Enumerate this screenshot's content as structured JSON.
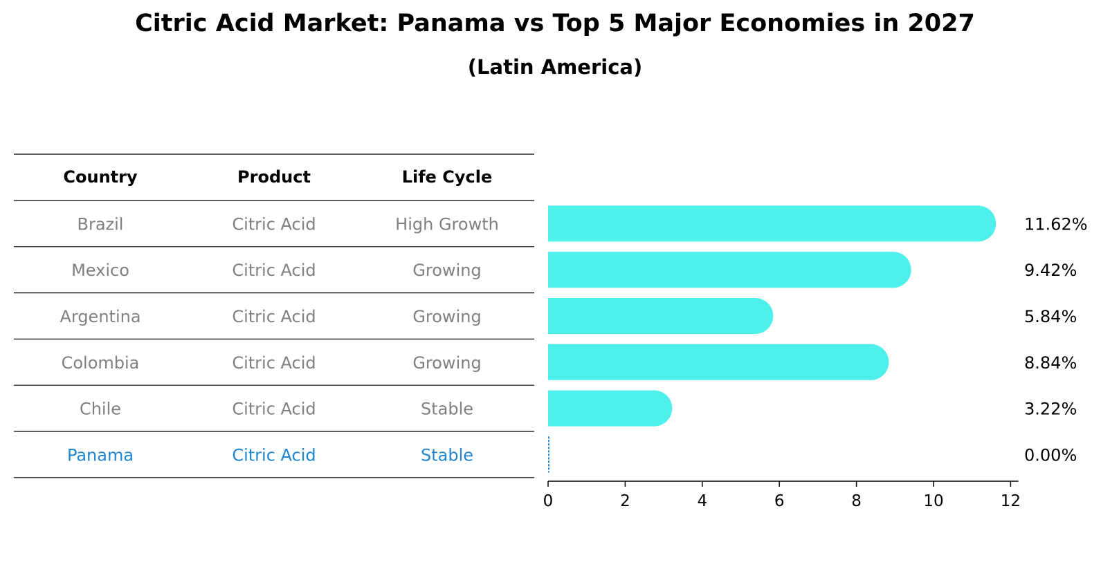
{
  "chart_data": {
    "type": "bar",
    "orientation": "horizontal",
    "title": "Citric Acid Market: Panama vs Top 5 Major Economies in 2027",
    "subtitle": "(Latin America)",
    "table": {
      "headers": [
        "Country",
        "Product",
        "Life Cycle"
      ],
      "rows": [
        {
          "country": "Brazil",
          "product": "Citric Acid",
          "life_cycle": "High Growth"
        },
        {
          "country": "Mexico",
          "product": "Citric Acid",
          "life_cycle": "Growing"
        },
        {
          "country": "Argentina",
          "product": "Citric Acid",
          "life_cycle": "Growing"
        },
        {
          "country": "Colombia",
          "product": "Citric Acid",
          "life_cycle": "Growing"
        },
        {
          "country": "Chile",
          "product": "Citric Acid",
          "life_cycle": "Stable"
        },
        {
          "country": "Panama",
          "product": "Citric Acid",
          "life_cycle": "Stable"
        }
      ]
    },
    "values": [
      11.62,
      9.42,
      5.84,
      8.84,
      3.22,
      0.0
    ],
    "value_labels": [
      "11.62%",
      "9.42%",
      "5.84%",
      "8.84%",
      "3.22%",
      "0.00%"
    ],
    "highlight_index": 5,
    "xlim": [
      0,
      12.2
    ],
    "xticks": [
      0,
      2,
      4,
      6,
      8,
      10,
      12
    ],
    "grid": false,
    "colors": {
      "bar": "#4df0ea",
      "highlight": "#1f86d2",
      "text_muted": "#808080",
      "text": "#000000"
    }
  }
}
